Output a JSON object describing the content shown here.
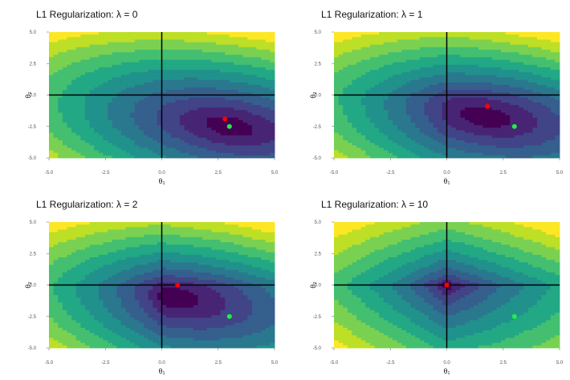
{
  "colors": {
    "palette": [
      "#440154",
      "#482475",
      "#414487",
      "#355f8d",
      "#2a788e",
      "#21918c",
      "#22a884",
      "#44bf70",
      "#7ad151",
      "#bddf26",
      "#fde725"
    ],
    "estimate_point": "#ff0000",
    "true_point": "#22ee44",
    "axis_line": "#000000"
  },
  "chart_data": [
    {
      "type": "contour",
      "title": "L1 Regularization: λ = 0",
      "xlabel": "θ₁",
      "ylabel": "θ₂",
      "xlim": [
        -5,
        5
      ],
      "ylim": [
        -5,
        5
      ],
      "x_ticks": [
        "-5.0",
        "-2.5",
        "0.0",
        "2.5",
        "5.0"
      ],
      "y_ticks": [
        "5.0",
        "2.5",
        "0.0",
        "-2.5",
        "-5.0"
      ],
      "lambda": 0,
      "loss_center": [
        3,
        -2.5
      ],
      "true_point": [
        3,
        -2.5
      ],
      "estimate_point": [
        2.8,
        -1.9
      ],
      "grid": false
    },
    {
      "type": "contour",
      "title": "L1 Regularization: λ = 1",
      "xlabel": "θ₁",
      "ylabel": "θ₂",
      "xlim": [
        -5,
        5
      ],
      "ylim": [
        -5,
        5
      ],
      "x_ticks": [
        "-5.0",
        "-2.5",
        "0.0",
        "2.5",
        "5.0"
      ],
      "y_ticks": [
        "5.0",
        "2.5",
        "0.0",
        "-2.5",
        "-5.0"
      ],
      "lambda": 1,
      "loss_center": [
        3,
        -2.5
      ],
      "true_point": [
        3,
        -2.5
      ],
      "estimate_point": [
        1.8,
        -0.9
      ],
      "grid": false
    },
    {
      "type": "contour",
      "title": "L1 Regularization: λ = 2",
      "xlabel": "θ₁",
      "ylabel": "θ₂",
      "xlim": [
        -5,
        5
      ],
      "ylim": [
        -5,
        5
      ],
      "x_ticks": [
        "-5.0",
        "-2.5",
        "0.0",
        "2.5",
        "5.0"
      ],
      "y_ticks": [
        "5.0",
        "2.5",
        "0.0",
        "-2.5",
        "-5.0"
      ],
      "lambda": 2,
      "loss_center": [
        3,
        -2.5
      ],
      "true_point": [
        3,
        -2.5
      ],
      "estimate_point": [
        0.7,
        0.0
      ],
      "grid": false
    },
    {
      "type": "contour",
      "title": "L1 Regularization: λ = 10",
      "xlabel": "θ₁",
      "ylabel": "θ₂",
      "xlim": [
        -5,
        5
      ],
      "ylim": [
        -5,
        5
      ],
      "x_ticks": [
        "-5.0",
        "-2.5",
        "0.0",
        "2.5",
        "5.0"
      ],
      "y_ticks": [
        "5.0",
        "2.5",
        "0.0",
        "-2.5",
        "-5.0"
      ],
      "lambda": 10,
      "loss_center": [
        3,
        -2.5
      ],
      "true_point": [
        3,
        -2.5
      ],
      "estimate_point": [
        0.0,
        0.0
      ],
      "grid": false
    }
  ]
}
